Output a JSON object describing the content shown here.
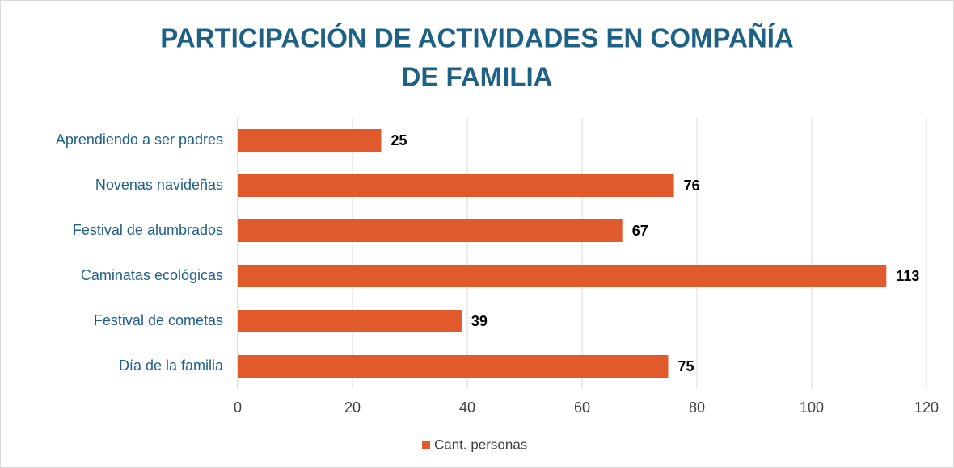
{
  "chart_data": {
    "type": "hbar",
    "title": [
      "PARTICIPACIÓN DE ACTIVIDADES  EN COMPAÑÍA",
      "DE FAMILIA"
    ],
    "categories": [
      "Aprendiendo a ser padres",
      "Novenas navideñas",
      "Festival de alumbrados",
      "Caminatas ecológicas",
      "Festival de cometas",
      "Día de la familia"
    ],
    "series": [
      {
        "name": "Cant. personas",
        "color": "#e05a2b",
        "values": [
          25,
          76,
          67,
          113,
          39,
          75
        ]
      }
    ],
    "xlim": [
      0,
      120
    ],
    "xticks": [
      0,
      20,
      40,
      60,
      80,
      100,
      120
    ],
    "grid": true,
    "legend": "bottom"
  }
}
